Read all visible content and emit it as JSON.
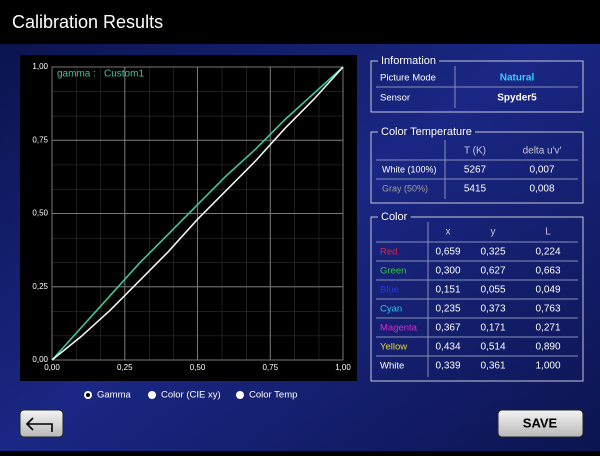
{
  "header": {
    "title": "Calibration Results"
  },
  "chart": {
    "type": "line",
    "gamma_label": "gamma :",
    "profile": "Custom1",
    "x": [
      0,
      0.1,
      0.2,
      0.3,
      0.4,
      0.5,
      0.6,
      0.7,
      0.8,
      0.9,
      1
    ],
    "series": [
      {
        "color": "#3cc8a0",
        "values": [
          0,
          0.11,
          0.22,
          0.33,
          0.43,
          0.53,
          0.63,
          0.72,
          0.82,
          0.91,
          1
        ]
      },
      {
        "color": "#f2f2f2",
        "values": [
          0,
          0.08,
          0.17,
          0.27,
          0.37,
          0.48,
          0.58,
          0.68,
          0.79,
          0.89,
          1
        ]
      }
    ],
    "xlim": [
      0,
      1
    ],
    "ylim": [
      0,
      1
    ],
    "xticks": [
      {
        "value": 0,
        "label": "0,00"
      },
      {
        "value": 0.25,
        "label": "0,25"
      },
      {
        "value": 0.5,
        "label": "0,50"
      },
      {
        "value": 0.75,
        "label": "0,75"
      },
      {
        "value": 1,
        "label": "1,00"
      }
    ],
    "yticks": [
      {
        "value": 0,
        "label": "0,00"
      },
      {
        "value": 0.25,
        "label": "0,25"
      },
      {
        "value": 0.5,
        "label": "0,50"
      },
      {
        "value": 0.75,
        "label": "0,75"
      },
      {
        "value": 1,
        "label": "1,00"
      }
    ],
    "grid": true
  },
  "information": {
    "title": "Information",
    "rows": [
      {
        "label": "Picture Mode",
        "value": "Natural",
        "color": "#33ccff"
      },
      {
        "label": "Sensor",
        "value": "Spyder5",
        "color": "#ffffff"
      }
    ]
  },
  "color_temperature": {
    "title": "Color Temperature",
    "headers": [
      "T (K)",
      "delta u'v'"
    ],
    "rows": [
      {
        "label": "White (100%)",
        "color": "#ffffff",
        "cells": [
          "5267",
          "0,007"
        ]
      },
      {
        "label": "Gray (50%)",
        "color": "#a0a0a0",
        "cells": [
          "5415",
          "0,008"
        ]
      }
    ]
  },
  "color": {
    "title": "Color",
    "headers": [
      "x",
      "y",
      "L"
    ],
    "rows": [
      {
        "label": "Red",
        "color": "#e8203c",
        "cells": [
          "0,659",
          "0,325",
          "0,224"
        ]
      },
      {
        "label": "Green",
        "color": "#30c838",
        "cells": [
          "0,300",
          "0,627",
          "0,663"
        ]
      },
      {
        "label": "Blue",
        "color": "#2838e8",
        "cells": [
          "0,151",
          "0,055",
          "0,049"
        ]
      },
      {
        "label": "Cyan",
        "color": "#28c8e8",
        "cells": [
          "0,235",
          "0,373",
          "0,763"
        ]
      },
      {
        "label": "Magenta",
        "color": "#d828d0",
        "cells": [
          "0,367",
          "0,171",
          "0,271"
        ]
      },
      {
        "label": "Yellow",
        "color": "#e8d828",
        "cells": [
          "0,434",
          "0,514",
          "0,890"
        ]
      },
      {
        "label": "White",
        "color": "#ffffff",
        "cells": [
          "0,339",
          "0,361",
          "1,000"
        ]
      }
    ]
  },
  "view_options": {
    "options": [
      "Gamma",
      "Color (CIE xy)",
      "Color Temp"
    ],
    "selected": 0
  },
  "buttons": {
    "save": "SAVE"
  }
}
